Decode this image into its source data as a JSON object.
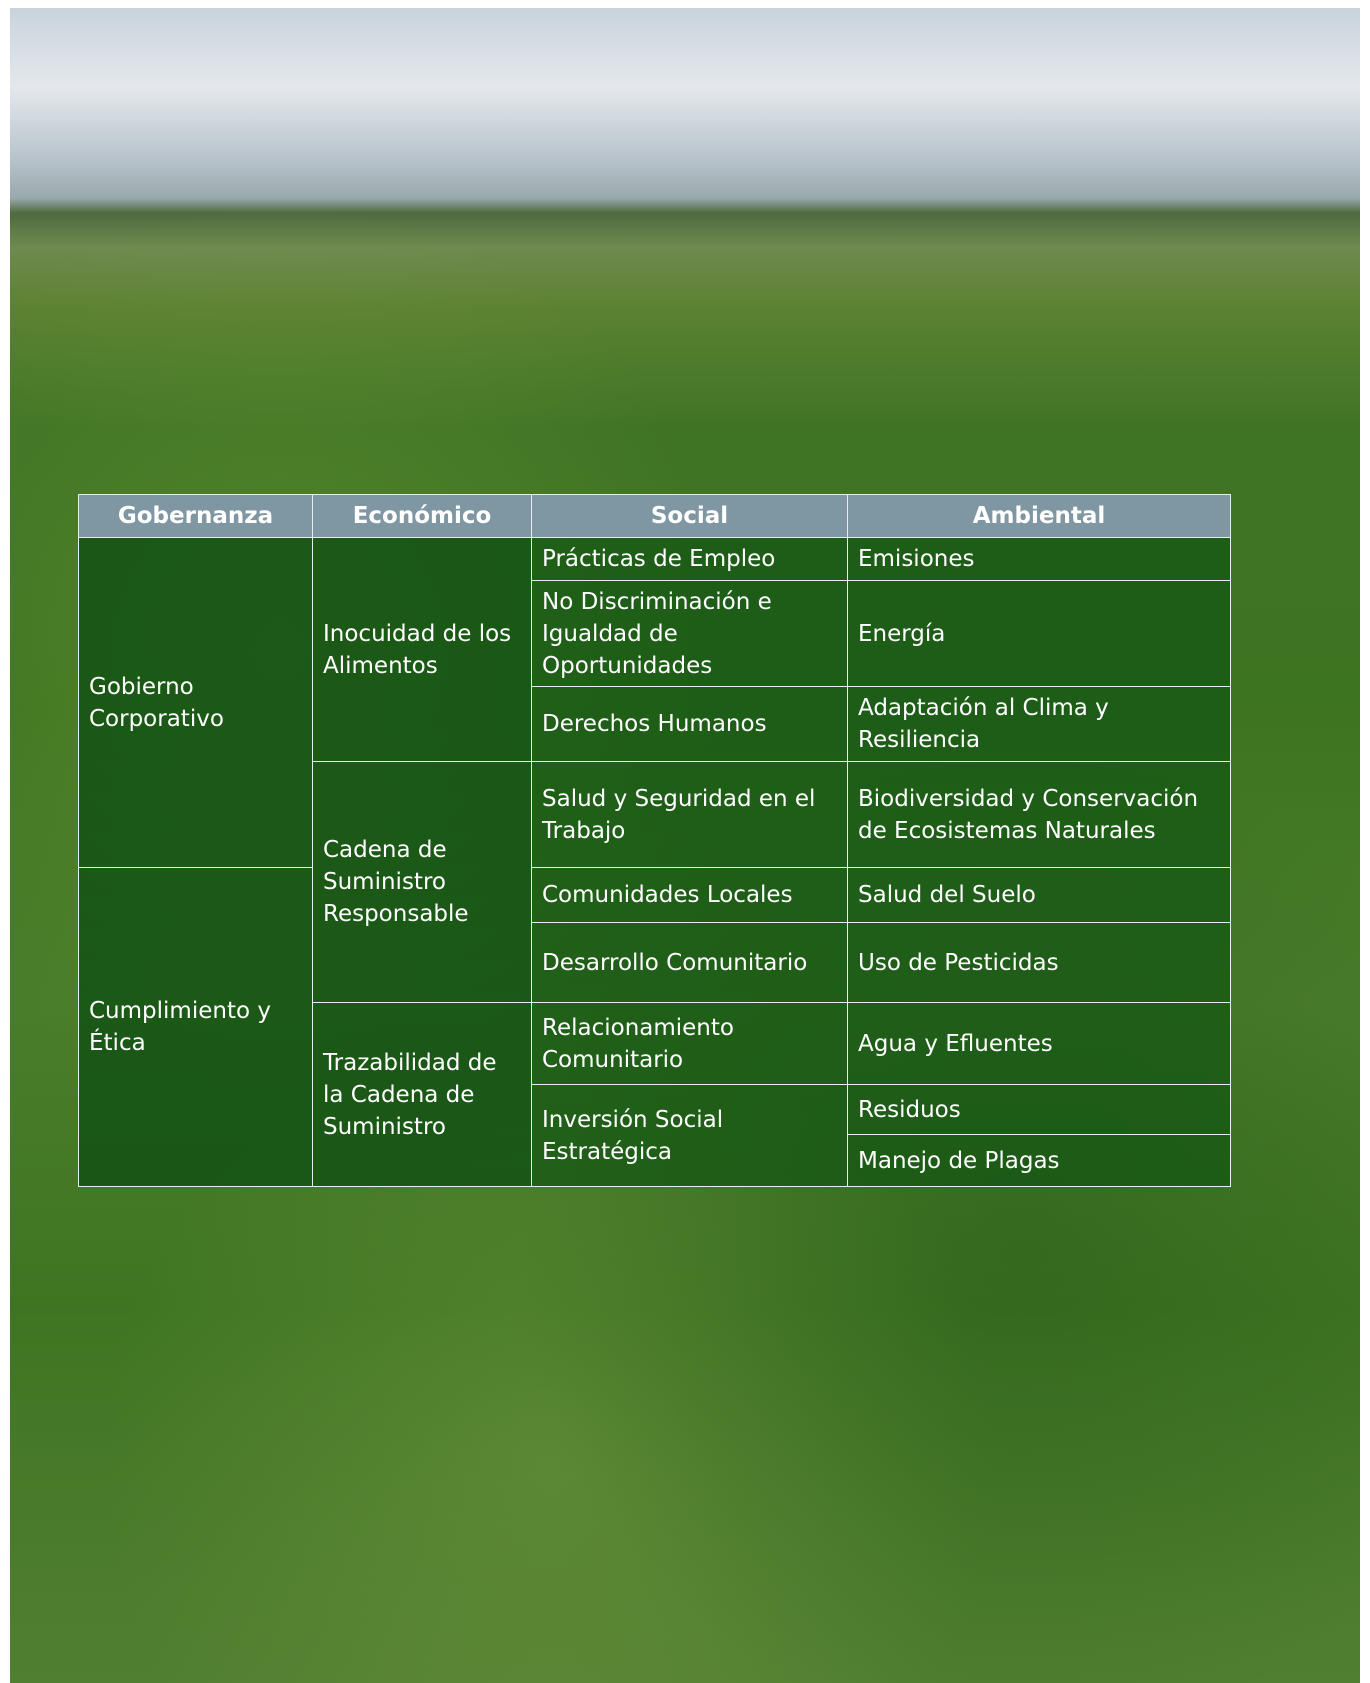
{
  "table": {
    "headers": [
      "Gobernanza",
      "Económico",
      "Social",
      "Ambiental"
    ],
    "gobernanza": [
      "Gobierno Corporativo",
      "Cumplimiento y Ética"
    ],
    "economico": [
      "Inocuidad de los Alimentos",
      "Cadena de Suministro Responsable",
      "Trazabilidad de la Cadena de Suministro"
    ],
    "social": [
      "Prácticas de Empleo",
      "No Discriminación e Igualdad de Oportunidades",
      "Derechos Humanos",
      "Salud y Seguridad en el Trabajo",
      "Comunidades Locales",
      "Desarrollo Comunitario",
      "Relacionamiento Comunitario",
      "Inversión Social Estratégica"
    ],
    "ambiental": [
      "Emisiones",
      "Energía",
      "Adaptación al Clima y Resiliencia",
      "Biodiversidad y Conservación de Ecosistemas Naturales",
      "Salud del Suelo",
      "Uso de Pesticidas",
      "Agua y Efluentes",
      "Residuos",
      "Manejo de Plagas"
    ]
  }
}
